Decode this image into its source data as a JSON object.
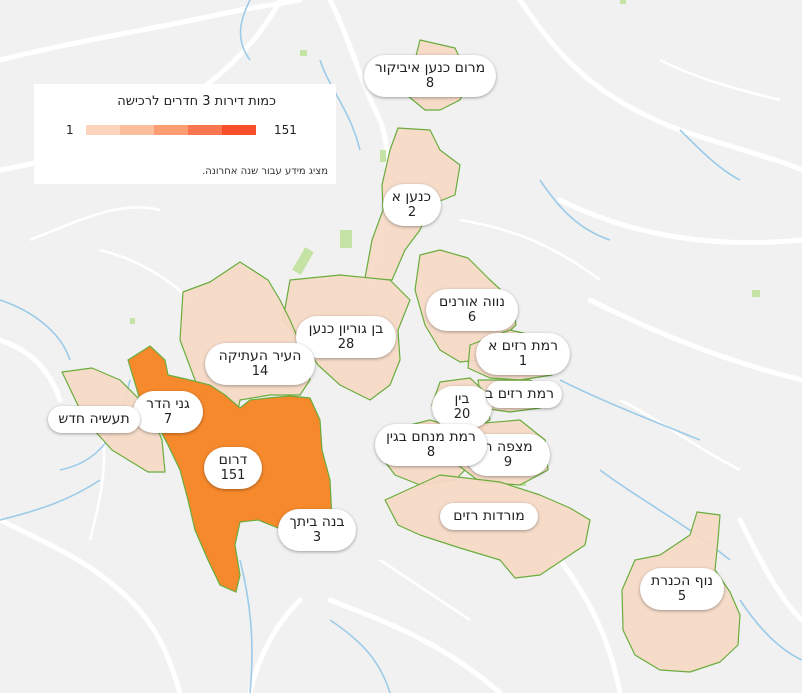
{
  "legend": {
    "title": "כמות דירות 3 חדרים לרכישה",
    "min": "1",
    "max": "151",
    "note": "מציג מידע עבור שנה אחרונה.",
    "colors": [
      "#fcd5bc",
      "#fcbf9e",
      "#fb9c72",
      "#fa7650",
      "#f9502b"
    ]
  },
  "colors": {
    "light_fill": "#f6d9c6",
    "dark_fill": "#f6892c",
    "border": "#6aad3d",
    "water": "#9ccbe9",
    "road": "#ffffff",
    "park": "#c5e3a5"
  },
  "neighborhoods": [
    {
      "name": "מרום כנען איביקור",
      "count": "8"
    },
    {
      "name": "כנען א",
      "count": "2"
    },
    {
      "name": "בן גוריון כנען",
      "count": "28"
    },
    {
      "name": "נווה אורנים",
      "count": "6"
    },
    {
      "name": "העיר העתיקה",
      "count": "14"
    },
    {
      "name": "רמת רזים א",
      "count": "1"
    },
    {
      "name": "רמת רזים ב",
      "count": ""
    },
    {
      "name": "בין",
      "count": "20"
    },
    {
      "name": "גני הדר",
      "count": "7"
    },
    {
      "name": "תעשיה חדש",
      "count": ""
    },
    {
      "name": "רמת מנחם בגין",
      "count": "8"
    },
    {
      "name": "מצפה ה",
      "count": "9"
    },
    {
      "name": "דרום",
      "count": "151"
    },
    {
      "name": "מורדות רזים",
      "count": ""
    },
    {
      "name": "בנה ביתך",
      "count": "3"
    },
    {
      "name": "נוף הכנרת",
      "count": "5"
    }
  ]
}
